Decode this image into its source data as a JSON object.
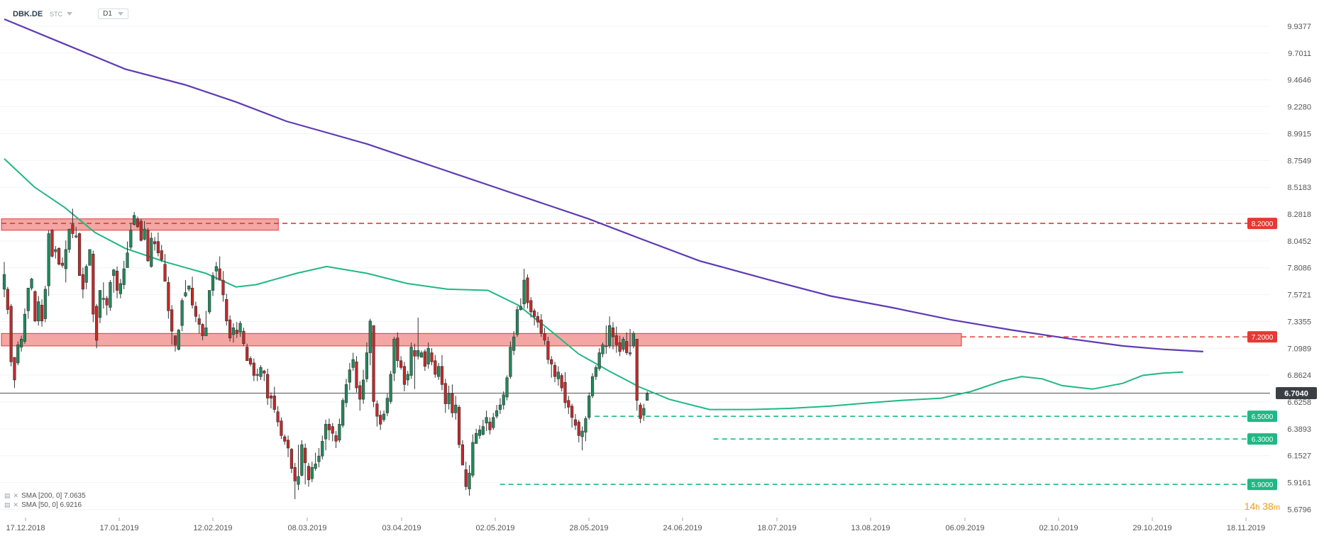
{
  "header": {
    "symbol": "DBK.DE",
    "market": "STC",
    "timeframe": "D1"
  },
  "countdown": {
    "hours": "14",
    "h": "h",
    "minutes": "38",
    "m": "m"
  },
  "indicators": [
    {
      "label": "SMA [200, 0] 7.0635",
      "color": "#5e3bb3"
    },
    {
      "label": "SMA [50, 0] 6.9216",
      "color": "#1fb885"
    }
  ],
  "chart_data": {
    "type": "candlestick",
    "symbol": "DBK.DE",
    "ylim": [
      5.62,
      10.1
    ],
    "y_ticks": [
      "9.9377",
      "9.7011",
      "9.4646",
      "9.2280",
      "8.9915",
      "8.7549",
      "8.5183",
      "8.2818",
      "8.0452",
      "7.8086",
      "7.5721",
      "7.3355",
      "7.0989",
      "6.8624",
      "6.6258",
      "6.3893",
      "6.1527",
      "5.9161",
      "5.6796"
    ],
    "x_ticks": [
      "17.12.2018",
      "17.01.2019",
      "12.02.2019",
      "08.03.2019",
      "03.04.2019",
      "02.05.2019",
      "28.05.2019",
      "24.06.2019",
      "18.07.2019",
      "13.08.2019",
      "06.09.2019",
      "02.10.2019",
      "29.10.2019",
      "18.11.2019"
    ],
    "last_price": "6.7040",
    "resistance_zones": [
      {
        "low": 8.14,
        "high": 8.24
      },
      {
        "low": 7.12,
        "high": 7.23
      }
    ],
    "levels": [
      {
        "value": 8.2,
        "label": "8.2000",
        "color": "#e53935"
      },
      {
        "value": 7.2,
        "label": "7.2000",
        "color": "#e53935"
      },
      {
        "value": 6.5,
        "label": "6.5000",
        "color": "#1fb885"
      },
      {
        "value": 6.3,
        "label": "6.3000",
        "color": "#1fb885"
      },
      {
        "value": 5.9,
        "label": "5.9000",
        "color": "#1fb885"
      }
    ],
    "sma200": [
      [
        0,
        10.0
      ],
      [
        30,
        9.78
      ],
      [
        60,
        9.56
      ],
      [
        90,
        9.42
      ],
      [
        115,
        9.27
      ],
      [
        140,
        9.1
      ],
      [
        160,
        9.0
      ],
      [
        180,
        8.9
      ],
      [
        200,
        8.78
      ],
      [
        220,
        8.66
      ],
      [
        245,
        8.51
      ],
      [
        270,
        8.36
      ],
      [
        290,
        8.24
      ],
      [
        315,
        8.07
      ],
      [
        345,
        7.87
      ],
      [
        380,
        7.7
      ],
      [
        410,
        7.56
      ],
      [
        440,
        7.46
      ],
      [
        470,
        7.35
      ],
      [
        500,
        7.26
      ],
      [
        530,
        7.18
      ],
      [
        555,
        7.12
      ],
      [
        575,
        7.09
      ],
      [
        595,
        7.07
      ]
    ],
    "sma50": [
      [
        0,
        8.77
      ],
      [
        15,
        8.52
      ],
      [
        30,
        8.34
      ],
      [
        45,
        8.12
      ],
      [
        60,
        7.98
      ],
      [
        80,
        7.86
      ],
      [
        100,
        7.76
      ],
      [
        115,
        7.64
      ],
      [
        125,
        7.66
      ],
      [
        145,
        7.76
      ],
      [
        160,
        7.82
      ],
      [
        180,
        7.76
      ],
      [
        200,
        7.67
      ],
      [
        220,
        7.62
      ],
      [
        240,
        7.61
      ],
      [
        255,
        7.48
      ],
      [
        270,
        7.27
      ],
      [
        285,
        7.05
      ],
      [
        300,
        6.9
      ],
      [
        315,
        6.76
      ],
      [
        330,
        6.65
      ],
      [
        350,
        6.56
      ],
      [
        370,
        6.56
      ],
      [
        390,
        6.57
      ],
      [
        410,
        6.59
      ],
      [
        430,
        6.62
      ],
      [
        445,
        6.64
      ],
      [
        465,
        6.66
      ],
      [
        480,
        6.72
      ],
      [
        495,
        6.81
      ],
      [
        505,
        6.85
      ],
      [
        515,
        6.83
      ],
      [
        525,
        6.77
      ],
      [
        540,
        6.74
      ],
      [
        555,
        6.79
      ],
      [
        565,
        6.86
      ],
      [
        575,
        6.88
      ],
      [
        585,
        6.89
      ]
    ],
    "candles": [
      [
        7.62,
        7.75,
        7.86,
        7.55
      ],
      [
        7.62,
        7.44,
        7.64,
        7.4
      ],
      [
        7.47,
        6.98,
        7.49,
        6.94
      ],
      [
        7.02,
        6.82,
        7.02,
        6.75
      ],
      [
        6.97,
        7.13,
        7.16,
        6.95
      ],
      [
        7.11,
        7.18,
        7.21,
        7.07
      ],
      [
        7.16,
        7.4,
        7.45,
        7.14
      ],
      [
        7.43,
        7.63,
        7.63,
        7.36
      ],
      [
        7.63,
        7.71,
        7.72,
        7.61
      ],
      [
        7.6,
        7.34,
        7.61,
        7.33
      ],
      [
        7.34,
        7.51,
        7.56,
        7.3
      ],
      [
        7.48,
        7.34,
        7.53,
        7.29
      ],
      [
        7.36,
        7.62,
        7.65,
        7.33
      ],
      [
        7.65,
        8.11,
        8.14,
        7.56
      ],
      [
        8.14,
        7.91,
        8.15,
        7.9
      ],
      [
        7.95,
        7.97,
        8.0,
        7.89
      ],
      [
        7.98,
        7.84,
        7.99,
        7.83
      ],
      [
        7.85,
        7.83,
        7.9,
        7.81
      ],
      [
        7.8,
        7.97,
        8.05,
        7.68
      ],
      [
        7.97,
        8.15,
        8.15,
        7.94
      ],
      [
        8.19,
        8.11,
        8.33,
        8.07
      ],
      [
        8.08,
        8.09,
        8.17,
        8.07
      ],
      [
        8.11,
        7.74,
        8.12,
        7.75
      ],
      [
        7.75,
        7.62,
        7.81,
        7.54
      ],
      [
        7.68,
        7.82,
        7.84,
        7.62
      ],
      [
        7.83,
        7.97,
        7.96,
        7.86
      ],
      [
        7.93,
        7.4,
        7.96,
        7.33
      ],
      [
        7.47,
        7.17,
        7.49,
        7.1
      ],
      [
        7.37,
        7.61,
        7.57,
        7.32
      ],
      [
        7.53,
        7.54,
        7.68,
        7.45
      ],
      [
        7.54,
        7.48,
        7.56,
        7.39
      ],
      [
        7.46,
        7.68,
        7.7,
        7.43
      ],
      [
        7.74,
        7.79,
        7.8,
        7.59
      ],
      [
        7.78,
        7.61,
        7.82,
        7.54
      ],
      [
        7.58,
        7.67,
        7.71,
        7.54
      ],
      [
        7.66,
        7.8,
        7.87,
        7.62
      ],
      [
        7.81,
        7.94,
        8.04,
        7.81
      ],
      [
        7.99,
        8.14,
        8.2,
        7.97
      ],
      [
        8.19,
        8.27,
        8.3,
        8.18
      ],
      [
        8.24,
        8.17,
        8.26,
        8.16
      ],
      [
        8.22,
        8.05,
        8.24,
        8.04
      ],
      [
        8.06,
        8.15,
        8.22,
        8.05
      ],
      [
        8.14,
        7.87,
        8.16,
        7.86
      ],
      [
        7.82,
        8.07,
        8.12,
        7.81
      ],
      [
        8.04,
        8.02,
        8.08,
        7.96
      ],
      [
        8.04,
        7.94,
        8.12,
        7.91
      ],
      [
        7.96,
        7.88,
        8.01,
        7.86
      ],
      [
        7.84,
        7.69,
        7.93,
        7.84
      ],
      [
        7.68,
        7.43,
        7.73,
        7.36
      ],
      [
        7.44,
        7.25,
        7.48,
        7.13
      ],
      [
        7.21,
        7.13,
        7.21,
        7.07
      ],
      [
        7.09,
        7.26,
        7.27,
        7.08
      ],
      [
        7.3,
        7.52,
        7.54,
        7.25
      ],
      [
        7.56,
        7.59,
        7.7,
        7.55
      ],
      [
        7.62,
        7.65,
        7.65,
        7.6
      ],
      [
        7.63,
        7.48,
        7.73,
        7.45
      ],
      [
        7.47,
        7.38,
        7.51,
        7.33
      ],
      [
        7.36,
        7.31,
        7.4,
        7.23
      ],
      [
        7.31,
        7.21,
        7.32,
        7.17
      ],
      [
        7.21,
        7.28,
        7.43,
        7.21
      ],
      [
        7.42,
        7.61,
        7.61,
        7.4
      ],
      [
        7.61,
        7.74,
        7.77,
        7.56
      ],
      [
        7.78,
        7.82,
        7.86,
        7.7
      ],
      [
        7.8,
        7.7,
        7.91,
        7.7
      ],
      [
        7.7,
        7.57,
        7.78,
        7.51
      ],
      [
        7.53,
        7.34,
        7.58,
        7.3
      ],
      [
        7.35,
        7.19,
        7.39,
        7.16
      ],
      [
        7.22,
        7.28,
        7.32,
        7.15
      ],
      [
        7.26,
        7.23,
        7.33,
        7.19
      ],
      [
        7.24,
        7.32,
        7.34,
        7.2
      ],
      [
        7.25,
        7.14,
        7.28,
        7.12
      ],
      [
        7.11,
        6.99,
        7.14,
        6.99
      ],
      [
        7.01,
        6.96,
        7.03,
        6.94
      ],
      [
        6.97,
        6.86,
        7.01,
        6.81
      ],
      [
        6.86,
        6.87,
        6.92,
        6.81
      ],
      [
        6.85,
        6.93,
        6.95,
        6.82
      ],
      [
        6.9,
        6.88,
        6.91,
        6.81
      ],
      [
        6.87,
        6.66,
        6.92,
        6.6
      ],
      [
        6.68,
        6.66,
        6.71,
        6.57
      ],
      [
        6.68,
        6.56,
        6.76,
        6.53
      ],
      [
        6.54,
        6.45,
        6.59,
        6.41
      ],
      [
        6.46,
        6.33,
        6.49,
        6.3
      ],
      [
        6.32,
        6.28,
        6.34,
        6.25
      ],
      [
        6.29,
        6.22,
        6.33,
        6.14
      ],
      [
        6.21,
        6.04,
        6.22,
        6.0
      ],
      [
        6.05,
        5.93,
        6.09,
        5.77
      ],
      [
        5.9,
        5.97,
        6.25,
        5.85
      ],
      [
        5.98,
        6.25,
        6.29,
        5.97
      ],
      [
        6.22,
        6.09,
        6.26,
        5.9
      ],
      [
        6.06,
        5.94,
        6.09,
        5.88
      ],
      [
        5.95,
        6.05,
        6.1,
        5.92
      ],
      [
        6.04,
        6.08,
        6.18,
        6.02
      ],
      [
        6.1,
        6.15,
        6.22,
        6.05
      ],
      [
        6.15,
        6.28,
        6.33,
        6.12
      ],
      [
        6.3,
        6.43,
        6.47,
        6.2
      ],
      [
        6.43,
        6.38,
        6.48,
        6.29
      ],
      [
        6.41,
        6.35,
        6.44,
        6.28
      ],
      [
        6.33,
        6.28,
        6.37,
        6.22
      ],
      [
        6.29,
        6.43,
        6.48,
        6.27
      ],
      [
        6.42,
        6.64,
        6.66,
        6.4
      ],
      [
        6.62,
        6.78,
        6.83,
        6.58
      ],
      [
        6.8,
        6.91,
        6.97,
        6.73
      ],
      [
        6.93,
        7.0,
        7.06,
        6.9
      ],
      [
        6.98,
        6.75,
        7.03,
        6.71
      ],
      [
        6.77,
        6.65,
        6.81,
        6.55
      ],
      [
        6.65,
        6.82,
        6.91,
        6.61
      ],
      [
        6.83,
        7.06,
        7.15,
        6.8
      ],
      [
        7.06,
        7.34,
        7.36,
        6.95
      ],
      [
        7.3,
        6.63,
        7.3,
        6.58
      ],
      [
        6.61,
        6.5,
        6.64,
        6.41
      ],
      [
        6.51,
        6.43,
        6.55,
        6.38
      ],
      [
        6.47,
        6.52,
        6.55,
        6.45
      ],
      [
        6.53,
        6.66,
        6.7,
        6.5
      ],
      [
        6.63,
        6.87,
        6.9,
        6.61
      ],
      [
        6.88,
        7.18,
        7.2,
        6.81
      ],
      [
        7.19,
        6.99,
        7.24,
        6.93
      ],
      [
        6.99,
        6.93,
        7.03,
        6.91
      ],
      [
        6.94,
        6.78,
        6.98,
        6.72
      ],
      [
        6.82,
        6.87,
        6.9,
        6.77
      ],
      [
        6.86,
        7.11,
        7.15,
        6.83
      ],
      [
        7.08,
        7.03,
        7.14,
        6.74
      ],
      [
        7.03,
        7.08,
        7.37,
        7.0
      ],
      [
        7.02,
        7.06,
        7.08,
        7.03
      ],
      [
        7.07,
        6.94,
        7.09,
        6.9
      ],
      [
        6.96,
        7.1,
        7.15,
        6.92
      ],
      [
        7.06,
        6.98,
        7.1,
        6.95
      ],
      [
        6.99,
        6.87,
        7.04,
        6.84
      ],
      [
        6.85,
        6.94,
        6.97,
        6.82
      ],
      [
        6.94,
        6.78,
        7.04,
        6.73
      ],
      [
        6.79,
        6.61,
        6.83,
        6.53
      ],
      [
        6.61,
        6.7,
        6.77,
        6.56
      ],
      [
        6.7,
        6.53,
        6.78,
        6.49
      ],
      [
        6.53,
        6.6,
        6.68,
        6.47
      ],
      [
        6.58,
        6.25,
        6.6,
        6.22
      ],
      [
        6.25,
        6.07,
        6.29,
        6.07
      ],
      [
        6.03,
        5.88,
        6.1,
        5.85
      ],
      [
        5.86,
        6.0,
        6.07,
        5.8
      ],
      [
        5.98,
        6.27,
        6.34,
        5.96
      ],
      [
        6.26,
        6.35,
        6.39,
        6.27
      ],
      [
        6.33,
        6.38,
        6.42,
        6.3
      ],
      [
        6.34,
        6.41,
        6.47,
        6.33
      ],
      [
        6.44,
        6.49,
        6.55,
        6.37
      ],
      [
        6.45,
        6.38,
        6.49,
        6.34
      ],
      [
        6.4,
        6.49,
        6.53,
        6.38
      ],
      [
        6.5,
        6.55,
        6.6,
        6.48
      ],
      [
        6.56,
        6.6,
        6.66,
        6.52
      ],
      [
        6.6,
        6.69,
        6.72,
        6.56
      ],
      [
        6.67,
        6.84,
        6.86,
        6.64
      ],
      [
        6.85,
        7.11,
        7.16,
        6.83
      ],
      [
        7.08,
        7.2,
        7.25,
        7.04
      ],
      [
        7.22,
        7.44,
        7.47,
        7.2
      ],
      [
        7.44,
        7.47,
        7.54,
        7.43
      ],
      [
        7.49,
        7.7,
        7.8,
        7.45
      ],
      [
        7.72,
        7.5,
        7.75,
        7.45
      ],
      [
        7.52,
        7.42,
        7.55,
        7.37
      ],
      [
        7.43,
        7.38,
        7.45,
        7.3
      ],
      [
        7.38,
        7.33,
        7.42,
        7.28
      ],
      [
        7.35,
        7.23,
        7.4,
        7.2
      ],
      [
        7.23,
        7.17,
        7.28,
        7.13
      ],
      [
        7.16,
        7.0,
        7.2,
        6.96
      ],
      [
        7.0,
        6.96,
        7.03,
        6.84
      ],
      [
        6.95,
        6.85,
        6.98,
        6.8
      ],
      [
        6.83,
        6.89,
        6.94,
        6.77
      ],
      [
        6.86,
        6.75,
        6.88,
        6.72
      ],
      [
        6.8,
        6.62,
        6.89,
        6.57
      ],
      [
        6.64,
        6.58,
        6.68,
        6.52
      ],
      [
        6.59,
        6.49,
        6.61,
        6.4
      ],
      [
        6.47,
        6.42,
        6.52,
        6.38
      ],
      [
        6.45,
        6.33,
        6.47,
        6.27
      ],
      [
        6.32,
        6.37,
        6.41,
        6.2
      ],
      [
        6.36,
        6.48,
        6.5,
        6.28
      ],
      [
        6.49,
        6.68,
        6.71,
        6.47
      ],
      [
        6.68,
        6.85,
        6.88,
        6.66
      ],
      [
        6.85,
        6.93,
        6.95,
        6.82
      ],
      [
        6.92,
        7.06,
        7.1,
        6.9
      ],
      [
        7.05,
        7.13,
        7.15,
        7.02
      ],
      [
        7.12,
        7.12,
        7.3,
        7.05
      ],
      [
        7.12,
        7.3,
        7.38,
        7.1
      ],
      [
        7.28,
        7.2,
        7.33,
        7.09
      ],
      [
        7.21,
        7.13,
        7.29,
        7.06
      ],
      [
        7.15,
        7.07,
        7.21,
        7.03
      ],
      [
        7.09,
        7.18,
        7.2,
        7.07
      ],
      [
        7.16,
        7.06,
        7.24,
        7.04
      ],
      [
        7.05,
        7.06,
        7.27,
        7.03
      ],
      [
        7.12,
        7.23,
        7.25,
        7.1
      ],
      [
        7.18,
        6.64,
        7.18,
        6.55
      ],
      [
        6.6,
        6.48,
        6.62,
        6.44
      ],
      [
        6.51,
        6.57,
        6.61,
        6.46
      ],
      [
        6.64,
        6.7,
        6.72,
        6.64
      ]
    ]
  }
}
